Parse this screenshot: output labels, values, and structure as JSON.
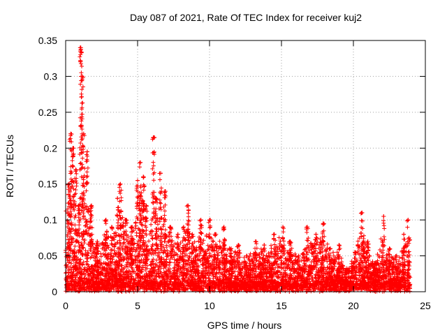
{
  "chart_data": {
    "type": "scatter",
    "title": "Day 087 of 2021, Rate Of TEC Index for receiver kuj2",
    "xlabel": "GPS time / hours",
    "ylabel": "ROTI / TECUs",
    "xlim": [
      0,
      25
    ],
    "ylim": [
      0,
      0.35
    ],
    "x_ticks": [
      0,
      5,
      10,
      15,
      20,
      25
    ],
    "x_tick_labels": [
      "0",
      "5",
      "10",
      "15",
      "20",
      "25"
    ],
    "y_ticks": [
      0,
      0.05,
      0.1,
      0.15,
      0.2,
      0.25,
      0.3,
      0.35
    ],
    "y_tick_labels": [
      "0",
      "0.05",
      "0.1",
      "0.15",
      "0.2",
      "0.25",
      "0.3",
      "0.35"
    ],
    "grid": true,
    "marker": "+",
    "color": "#ff0000",
    "series": [
      {
        "name": "ROTI",
        "peaks": [
          {
            "x": 0.2,
            "y": 0.15
          },
          {
            "x": 0.35,
            "y": 0.22
          },
          {
            "x": 0.5,
            "y": 0.2
          },
          {
            "x": 0.7,
            "y": 0.17
          },
          {
            "x": 0.9,
            "y": 0.12
          },
          {
            "x": 1.05,
            "y": 0.34
          },
          {
            "x": 1.15,
            "y": 0.3
          },
          {
            "x": 1.25,
            "y": 0.22
          },
          {
            "x": 1.5,
            "y": 0.195
          },
          {
            "x": 1.8,
            "y": 0.12
          },
          {
            "x": 2.2,
            "y": 0.07
          },
          {
            "x": 2.8,
            "y": 0.1
          },
          {
            "x": 3.2,
            "y": 0.09
          },
          {
            "x": 3.6,
            "y": 0.13
          },
          {
            "x": 3.8,
            "y": 0.15
          },
          {
            "x": 4.2,
            "y": 0.1
          },
          {
            "x": 4.6,
            "y": 0.09
          },
          {
            "x": 5.0,
            "y": 0.155
          },
          {
            "x": 5.2,
            "y": 0.18
          },
          {
            "x": 5.4,
            "y": 0.16
          },
          {
            "x": 5.6,
            "y": 0.12
          },
          {
            "x": 6.0,
            "y": 0.1
          },
          {
            "x": 6.1,
            "y": 0.215
          },
          {
            "x": 6.3,
            "y": 0.13
          },
          {
            "x": 6.6,
            "y": 0.165
          },
          {
            "x": 6.9,
            "y": 0.14
          },
          {
            "x": 7.3,
            "y": 0.09
          },
          {
            "x": 7.8,
            "y": 0.08
          },
          {
            "x": 8.2,
            "y": 0.09
          },
          {
            "x": 8.5,
            "y": 0.12
          },
          {
            "x": 8.8,
            "y": 0.08
          },
          {
            "x": 9.4,
            "y": 0.1
          },
          {
            "x": 10.0,
            "y": 0.1
          },
          {
            "x": 10.4,
            "y": 0.08
          },
          {
            "x": 11.0,
            "y": 0.09
          },
          {
            "x": 11.5,
            "y": 0.06
          },
          {
            "x": 12.0,
            "y": 0.065
          },
          {
            "x": 12.6,
            "y": 0.05
          },
          {
            "x": 13.2,
            "y": 0.07
          },
          {
            "x": 13.8,
            "y": 0.065
          },
          {
            "x": 14.5,
            "y": 0.08
          },
          {
            "x": 15.1,
            "y": 0.09
          },
          {
            "x": 15.6,
            "y": 0.07
          },
          {
            "x": 16.2,
            "y": 0.05
          },
          {
            "x": 16.8,
            "y": 0.09
          },
          {
            "x": 17.4,
            "y": 0.08
          },
          {
            "x": 17.9,
            "y": 0.095
          },
          {
            "x": 18.4,
            "y": 0.06
          },
          {
            "x": 19.0,
            "y": 0.065
          },
          {
            "x": 19.5,
            "y": 0.03
          },
          {
            "x": 20.1,
            "y": 0.055
          },
          {
            "x": 20.6,
            "y": 0.11
          },
          {
            "x": 21.0,
            "y": 0.07
          },
          {
            "x": 21.5,
            "y": 0.04
          },
          {
            "x": 22.1,
            "y": 0.105
          },
          {
            "x": 22.5,
            "y": 0.06
          },
          {
            "x": 23.0,
            "y": 0.05
          },
          {
            "x": 23.5,
            "y": 0.08
          },
          {
            "x": 23.8,
            "y": 0.1
          }
        ]
      }
    ]
  }
}
